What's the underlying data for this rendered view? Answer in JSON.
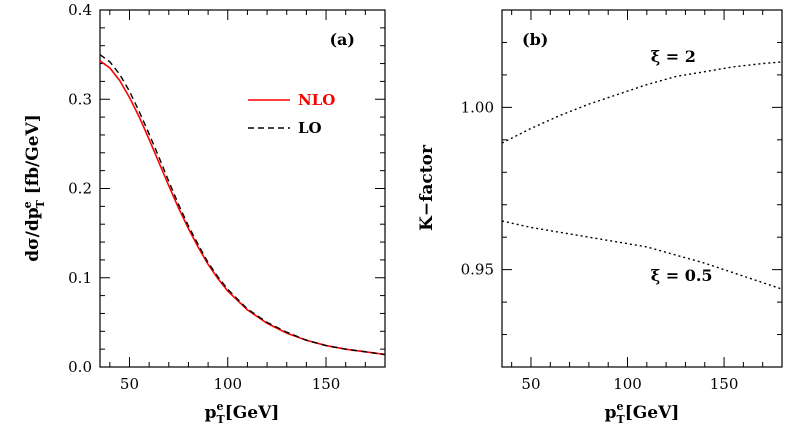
{
  "chart_data": [
    {
      "type": "line",
      "panel_label": "(a)",
      "xlabel_main": "p",
      "xlabel_sub": "T",
      "xlabel_sup": "e",
      "xlabel_unit": "[GeV]",
      "ylabel_prefix": "dσ/dp",
      "ylabel_sub": "T",
      "ylabel_sup": "e",
      "ylabel_unit": " [fb/GeV]",
      "xlim": [
        35,
        180
      ],
      "ylim": [
        0,
        0.4
      ],
      "xticks": [
        50,
        100,
        150
      ],
      "yticks": [
        0.0,
        0.1,
        0.2,
        0.3,
        0.4
      ],
      "ytick_labels": [
        "0.0",
        "0.1",
        "0.2",
        "0.3",
        "0.4"
      ],
      "legend_position": "top-right",
      "series": [
        {
          "name": "NLO",
          "color": "#ff0000",
          "dash": "solid",
          "x": [
            35,
            40,
            45,
            50,
            55,
            60,
            65,
            70,
            75,
            80,
            85,
            90,
            95,
            100,
            110,
            120,
            130,
            140,
            150,
            160,
            170,
            180
          ],
          "y": [
            0.343,
            0.335,
            0.321,
            0.302,
            0.28,
            0.255,
            0.229,
            0.203,
            0.178,
            0.155,
            0.134,
            0.115,
            0.099,
            0.085,
            0.064,
            0.049,
            0.038,
            0.03,
            0.024,
            0.02,
            0.017,
            0.014
          ]
        },
        {
          "name": "LO",
          "color": "#000000",
          "dash": "dashed",
          "x": [
            35,
            40,
            45,
            50,
            55,
            60,
            65,
            70,
            75,
            80,
            85,
            90,
            95,
            100,
            110,
            120,
            130,
            140,
            150,
            160,
            170,
            180
          ],
          "y": [
            0.35,
            0.342,
            0.328,
            0.309,
            0.286,
            0.261,
            0.235,
            0.208,
            0.182,
            0.158,
            0.137,
            0.117,
            0.101,
            0.087,
            0.065,
            0.05,
            0.039,
            0.03,
            0.024,
            0.02,
            0.017,
            0.014
          ]
        }
      ]
    },
    {
      "type": "line",
      "panel_label": "(b)",
      "xlabel_main": "p",
      "xlabel_sub": "T",
      "xlabel_sup": "e",
      "xlabel_unit": "[GeV]",
      "ylabel": "K−factor",
      "xlim": [
        35,
        180
      ],
      "ylim": [
        0.92,
        1.03
      ],
      "xticks": [
        50,
        100,
        150
      ],
      "yticks": [
        0.95,
        1.0
      ],
      "ytick_labels": [
        "0.95",
        "1.00"
      ],
      "annotations": [
        {
          "text": "ξ = 2",
          "x": 112,
          "y": 1.014
        },
        {
          "text": "ξ = 0.5",
          "x": 112,
          "y": 0.9465
        }
      ],
      "series": [
        {
          "color": "#000000",
          "dash": "dotted",
          "x": [
            35,
            50,
            65,
            80,
            95,
            110,
            125,
            140,
            155,
            170,
            180
          ],
          "y": [
            0.989,
            0.9935,
            0.9975,
            1.001,
            1.004,
            1.007,
            1.0095,
            1.011,
            1.0125,
            1.0135,
            1.014
          ]
        },
        {
          "color": "#000000",
          "dash": "dotted",
          "x": [
            35,
            50,
            65,
            80,
            95,
            110,
            125,
            140,
            155,
            170,
            180
          ],
          "y": [
            0.965,
            0.963,
            0.9615,
            0.96,
            0.9585,
            0.957,
            0.9545,
            0.952,
            0.949,
            0.946,
            0.944
          ]
        }
      ]
    }
  ]
}
